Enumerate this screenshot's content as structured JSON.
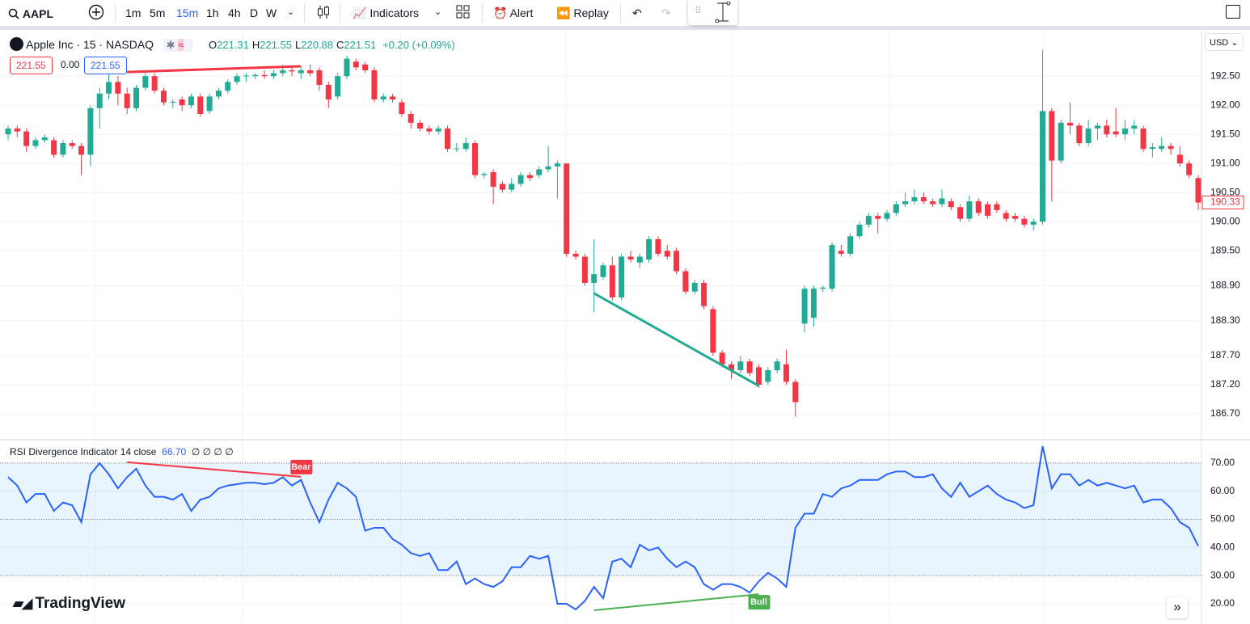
{
  "toolbar": {
    "symbol": "AAPL",
    "intervals": [
      "1m",
      "5m",
      "15m",
      "1h",
      "4h",
      "D",
      "W"
    ],
    "active_interval": "15m",
    "indicators": "Indicators",
    "alert": "Alert",
    "replay": "Replay"
  },
  "legend": {
    "name": "Apple Inc · 15 · NASDAQ",
    "ohlc": [
      {
        "key": "O",
        "value": 221.31
      },
      {
        "key": "H",
        "value": 221.55
      },
      {
        "key": "L",
        "value": 220.88
      },
      {
        "key": "C",
        "value": 221.51
      }
    ],
    "change": "+0.20 (+0.09%)",
    "boxes": [
      "221.55",
      "0.00",
      "221.55"
    ]
  },
  "currency": "USD",
  "brand": "TradingView",
  "chart_data": [
    {
      "type": "candlestick",
      "up_color": "#22ab94",
      "down_color": "#f23645",
      "ylim": [
        186.27,
        193.28
      ],
      "yticks": [
        {
          "value": 192.5,
          "label": "192.50"
        },
        {
          "value": 192,
          "label": "192.00"
        },
        {
          "value": 191.5,
          "label": "191.50"
        },
        {
          "value": 191,
          "label": "191.00"
        },
        {
          "value": 190.5,
          "label": "190.50"
        },
        {
          "value": 190,
          "label": "190.00"
        },
        {
          "value": 189.5,
          "label": "189.50"
        },
        {
          "value": 188.9,
          "label": "188.90"
        },
        {
          "value": 188.3,
          "label": "188.30"
        },
        {
          "value": 187.7,
          "label": "187.70"
        },
        {
          "value": 187.2,
          "label": "187.20"
        },
        {
          "value": 186.7,
          "label": "186.70"
        }
      ],
      "candles": [
        [
          191.5,
          191.65,
          191.4,
          191.6
        ],
        [
          191.6,
          191.65,
          191.45,
          191.55
        ],
        [
          191.55,
          191.6,
          191.2,
          191.3
        ],
        [
          191.3,
          191.45,
          191.25,
          191.4
        ],
        [
          191.4,
          191.5,
          191.35,
          191.45
        ],
        [
          191.4,
          191.45,
          191.1,
          191.15
        ],
        [
          191.15,
          191.4,
          191.1,
          191.35
        ],
        [
          191.35,
          191.4,
          191.25,
          191.3
        ],
        [
          191.3,
          191.35,
          190.8,
          191.15
        ],
        [
          191.15,
          192.0,
          190.95,
          191.95
        ],
        [
          191.95,
          192.3,
          191.6,
          192.2
        ],
        [
          192.2,
          192.6,
          192.1,
          192.4
        ],
        [
          192.4,
          192.5,
          192.0,
          192.2
        ],
        [
          192.2,
          192.3,
          191.85,
          191.95
        ],
        [
          191.95,
          192.35,
          191.9,
          192.3
        ],
        [
          192.3,
          192.6,
          192.25,
          192.5
        ],
        [
          192.5,
          192.55,
          192.2,
          192.25
        ],
        [
          192.25,
          192.3,
          192.0,
          192.05
        ],
        [
          192.05,
          192.1,
          191.95,
          192.06
        ],
        [
          192.1,
          192.15,
          191.9,
          192.0
        ],
        [
          192.0,
          192.2,
          191.95,
          192.15
        ],
        [
          192.15,
          192.2,
          191.8,
          191.85
        ],
        [
          191.9,
          192.2,
          191.85,
          192.15
        ],
        [
          192.15,
          192.3,
          192.1,
          192.25
        ],
        [
          192.25,
          192.45,
          192.2,
          192.4
        ],
        [
          192.4,
          192.55,
          192.35,
          192.5
        ],
        [
          192.5,
          192.55,
          192.4,
          192.51
        ],
        [
          192.5,
          192.55,
          192.45,
          192.52
        ],
        [
          192.52,
          192.6,
          192.45,
          192.5
        ],
        [
          192.5,
          192.6,
          192.45,
          192.55
        ],
        [
          192.55,
          192.7,
          192.5,
          192.6
        ],
        [
          192.6,
          192.65,
          192.5,
          192.58
        ],
        [
          192.55,
          192.65,
          192.45,
          192.6
        ],
        [
          192.6,
          192.7,
          192.5,
          192.55
        ],
        [
          192.6,
          192.65,
          192.25,
          192.35
        ],
        [
          192.35,
          192.4,
          191.95,
          192.1
        ],
        [
          192.15,
          192.55,
          192.1,
          192.5
        ],
        [
          192.5,
          192.85,
          192.45,
          192.8
        ],
        [
          192.75,
          192.8,
          192.6,
          192.65
        ],
        [
          192.7,
          192.75,
          192.55,
          192.6
        ],
        [
          192.6,
          192.65,
          192.05,
          192.1
        ],
        [
          192.1,
          192.2,
          192.05,
          192.15
        ],
        [
          192.15,
          192.2,
          192.05,
          192.1
        ],
        [
          192.05,
          192.1,
          191.8,
          191.85
        ],
        [
          191.85,
          191.9,
          191.6,
          191.7
        ],
        [
          191.7,
          191.75,
          191.55,
          191.6
        ],
        [
          191.6,
          191.65,
          191.5,
          191.55
        ],
        [
          191.55,
          191.65,
          191.5,
          191.6
        ],
        [
          191.6,
          191.65,
          191.2,
          191.25
        ],
        [
          191.25,
          191.35,
          191.2,
          191.26
        ],
        [
          191.25,
          191.45,
          191.2,
          191.35
        ],
        [
          191.35,
          191.4,
          190.75,
          190.8
        ],
        [
          190.8,
          190.85,
          190.75,
          190.82
        ],
        [
          190.85,
          190.9,
          190.3,
          190.6
        ],
        [
          190.65,
          190.7,
          190.5,
          190.55
        ],
        [
          190.55,
          190.75,
          190.5,
          190.65
        ],
        [
          190.65,
          190.85,
          190.6,
          190.8
        ],
        [
          190.8,
          190.85,
          190.7,
          190.75
        ],
        [
          190.8,
          190.95,
          190.75,
          190.9
        ],
        [
          190.9,
          191.3,
          190.85,
          190.95
        ],
        [
          190.95,
          191.05,
          190.4,
          191.0
        ],
        [
          191.0,
          191.0,
          189.4,
          189.45
        ],
        [
          189.45,
          189.5,
          189.35,
          189.4
        ],
        [
          189.4,
          189.45,
          188.9,
          188.95
        ],
        [
          188.95,
          189.7,
          188.45,
          189.1
        ],
        [
          189.05,
          189.3,
          189.0,
          189.25
        ],
        [
          189.25,
          189.4,
          188.65,
          188.7
        ],
        [
          188.7,
          189.45,
          188.65,
          189.4
        ],
        [
          189.4,
          189.5,
          189.3,
          189.35
        ],
        [
          189.3,
          189.45,
          189.2,
          189.4
        ],
        [
          189.35,
          189.75,
          189.3,
          189.7
        ],
        [
          189.7,
          189.75,
          189.4,
          189.45
        ],
        [
          189.5,
          189.6,
          189.35,
          189.4
        ],
        [
          189.5,
          189.55,
          189.1,
          189.15
        ],
        [
          189.15,
          189.2,
          188.75,
          188.8
        ],
        [
          188.8,
          189.0,
          188.75,
          188.95
        ],
        [
          188.95,
          189.0,
          188.5,
          188.55
        ],
        [
          188.5,
          188.55,
          187.7,
          187.75
        ],
        [
          187.75,
          187.8,
          187.5,
          187.55
        ],
        [
          187.55,
          187.6,
          187.3,
          187.45
        ],
        [
          187.45,
          187.7,
          187.4,
          187.6
        ],
        [
          187.6,
          187.65,
          187.35,
          187.4
        ],
        [
          187.5,
          187.55,
          187.15,
          187.2
        ],
        [
          187.25,
          187.5,
          187.2,
          187.45
        ],
        [
          187.45,
          187.65,
          187.4,
          187.6
        ],
        [
          187.55,
          187.8,
          187.2,
          187.25
        ],
        [
          187.25,
          187.3,
          186.65,
          186.9
        ],
        [
          188.25,
          188.9,
          188.1,
          188.85
        ],
        [
          188.35,
          188.9,
          188.2,
          188.85
        ],
        [
          188.85,
          188.9,
          188.8,
          188.87
        ],
        [
          188.85,
          189.65,
          188.8,
          189.6
        ],
        [
          189.5,
          189.6,
          189.4,
          189.45
        ],
        [
          189.45,
          189.8,
          189.4,
          189.75
        ],
        [
          189.75,
          190.0,
          189.7,
          189.95
        ],
        [
          189.95,
          190.15,
          189.9,
          190.1
        ],
        [
          190.1,
          190.15,
          189.8,
          190.05
        ],
        [
          190.05,
          190.2,
          190.0,
          190.15
        ],
        [
          190.15,
          190.35,
          190.1,
          190.3
        ],
        [
          190.3,
          190.5,
          190.25,
          190.35
        ],
        [
          190.35,
          190.55,
          190.3,
          190.42
        ],
        [
          190.42,
          190.5,
          190.3,
          190.35
        ],
        [
          190.35,
          190.4,
          190.25,
          190.3
        ],
        [
          190.3,
          190.55,
          190.25,
          190.4
        ],
        [
          190.35,
          190.4,
          190.2,
          190.25
        ],
        [
          190.25,
          190.3,
          190.0,
          190.05
        ],
        [
          190.05,
          190.45,
          190.0,
          190.35
        ],
        [
          190.35,
          190.4,
          190.1,
          190.15
        ],
        [
          190.3,
          190.35,
          190.05,
          190.1
        ],
        [
          190.3,
          190.35,
          190.15,
          190.2
        ],
        [
          190.15,
          190.2,
          190.0,
          190.05
        ],
        [
          190.1,
          190.15,
          190.0,
          190.05
        ],
        [
          190.05,
          190.1,
          189.9,
          189.95
        ],
        [
          189.95,
          190.05,
          189.85,
          190.0
        ],
        [
          190.0,
          192.95,
          189.95,
          191.9
        ],
        [
          191.9,
          191.95,
          190.35,
          191.05
        ],
        [
          191.05,
          191.75,
          191.0,
          191.7
        ],
        [
          191.7,
          192.05,
          191.5,
          191.65
        ],
        [
          191.65,
          191.7,
          191.3,
          191.35
        ],
        [
          191.35,
          191.75,
          191.3,
          191.6
        ],
        [
          191.6,
          191.7,
          191.4,
          191.65
        ],
        [
          191.65,
          191.75,
          191.45,
          191.5
        ],
        [
          191.55,
          191.95,
          191.45,
          191.5
        ],
        [
          191.5,
          191.75,
          191.4,
          191.6
        ],
        [
          191.6,
          191.75,
          191.5,
          191.65
        ],
        [
          191.6,
          191.65,
          191.2,
          191.25
        ],
        [
          191.25,
          191.35,
          191.1,
          191.28
        ],
        [
          191.25,
          191.45,
          191.2,
          191.3
        ],
        [
          191.3,
          191.35,
          191.15,
          191.25
        ],
        [
          191.15,
          191.3,
          190.95,
          191.0
        ],
        [
          191.0,
          191.05,
          190.75,
          190.8
        ],
        [
          190.75,
          190.8,
          190.2,
          190.33
        ]
      ],
      "divergences": [
        {
          "color": "#f23645",
          "from": 13,
          "to": 32,
          "values": [
            192.57,
            192.67
          ]
        },
        {
          "color": "#22ab94",
          "from": 64,
          "to": 82,
          "values": [
            188.77,
            187.18
          ]
        }
      ]
    },
    {
      "type": "line",
      "title": "RSI Divergence Indicator",
      "length": 14,
      "source": "close",
      "current": "66.70",
      "placeholders": "∅ ∅ ∅ ∅",
      "color": "#2962ff",
      "ylim": [
        13.4,
        78
      ],
      "yticks": [
        {
          "value": 70,
          "label": "70.00"
        },
        {
          "value": 60,
          "label": "60.00"
        },
        {
          "value": 50,
          "label": "50.00"
        },
        {
          "value": 40,
          "label": "40.00"
        },
        {
          "value": 30,
          "label": "30.00"
        },
        {
          "value": 20,
          "label": "20.00"
        }
      ],
      "levels": [
        70,
        50,
        30
      ],
      "band": [
        30,
        70
      ],
      "values": [
        65,
        62,
        56,
        59,
        59,
        53,
        56,
        55,
        49,
        66,
        70,
        66,
        61,
        65,
        68,
        62,
        58,
        58,
        57,
        59,
        53,
        57,
        58,
        61,
        62,
        62.5,
        63,
        63,
        62.5,
        63,
        65,
        62,
        64,
        56,
        49,
        57,
        63,
        61,
        58,
        46,
        47,
        47,
        43,
        41,
        38,
        37,
        38,
        32,
        32,
        35,
        27,
        29,
        27,
        26,
        28,
        33,
        33,
        37,
        36,
        37,
        20,
        20,
        18,
        21,
        26,
        22,
        35,
        36,
        33,
        41,
        39,
        40,
        36,
        33,
        35,
        33,
        27,
        25,
        27,
        27,
        26,
        24,
        28,
        31,
        29,
        26,
        47,
        52,
        52,
        59,
        58,
        61,
        62,
        64,
        64,
        64,
        66,
        67,
        67,
        65,
        65,
        66,
        61,
        58,
        63,
        58,
        60,
        62,
        59,
        57,
        56,
        54,
        55,
        76,
        61,
        66,
        66,
        62,
        64,
        62,
        63,
        62,
        61,
        62,
        56,
        57,
        57,
        54,
        49,
        47,
        40.5
      ],
      "divergences": [
        {
          "label": "Bear",
          "color": "#f23645",
          "from": 13,
          "to": 32,
          "values": [
            70.3,
            65.1
          ]
        },
        {
          "label": "Bull",
          "color": "#4caf50",
          "from": 64,
          "to": 82,
          "values": [
            17.7,
            23.4
          ]
        }
      ]
    }
  ]
}
